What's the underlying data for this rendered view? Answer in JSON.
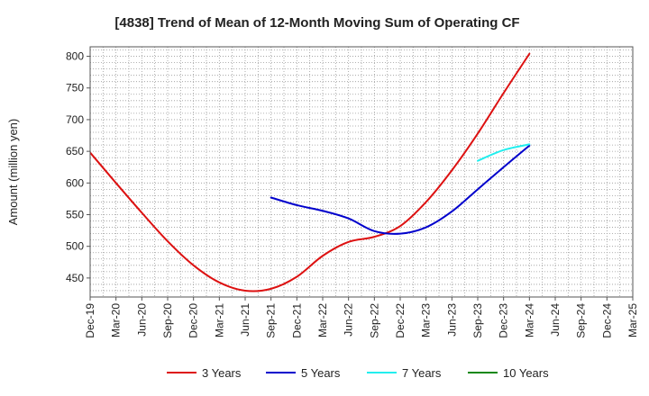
{
  "chart_data": {
    "type": "line",
    "title": "[4838]  Trend of Mean of 12-Month Moving Sum of Operating CF",
    "xlabel": "",
    "ylabel": "Amount (million yen)",
    "ylim": [
      420,
      815
    ],
    "yticks": [
      450,
      500,
      550,
      600,
      650,
      700,
      750,
      800
    ],
    "categories": [
      "Dec-19",
      "Mar-20",
      "Jun-20",
      "Sep-20",
      "Dec-20",
      "Mar-21",
      "Jun-21",
      "Sep-21",
      "Dec-21",
      "Mar-22",
      "Jun-22",
      "Sep-22",
      "Dec-22",
      "Mar-23",
      "Jun-23",
      "Sep-23",
      "Dec-23",
      "Mar-24",
      "Jun-24",
      "Sep-24",
      "Dec-24",
      "Mar-25"
    ],
    "grid": true,
    "legend_position": "bottom",
    "series": [
      {
        "name": "3 Years",
        "color": "#dd1111",
        "values": [
          648,
          600,
          553,
          508,
          470,
          443,
          430,
          433,
          452,
          485,
          507,
          515,
          532,
          570,
          620,
          678,
          742,
          804,
          null,
          null,
          null,
          null
        ]
      },
      {
        "name": "5 Years",
        "color": "#0000cc",
        "values": [
          null,
          null,
          null,
          null,
          null,
          null,
          null,
          577,
          565,
          556,
          544,
          524,
          520,
          530,
          555,
          590,
          625,
          659,
          null,
          null,
          null,
          null
        ]
      },
      {
        "name": "7 Years",
        "color": "#22eeee",
        "values": [
          null,
          null,
          null,
          null,
          null,
          null,
          null,
          null,
          null,
          null,
          null,
          null,
          null,
          null,
          null,
          635,
          652,
          661,
          null,
          null,
          null,
          null
        ]
      },
      {
        "name": "10 Years",
        "color": "#118811",
        "values": [
          null,
          null,
          null,
          null,
          null,
          null,
          null,
          null,
          null,
          null,
          null,
          null,
          null,
          null,
          null,
          null,
          null,
          null,
          null,
          null,
          null,
          null
        ]
      }
    ]
  }
}
